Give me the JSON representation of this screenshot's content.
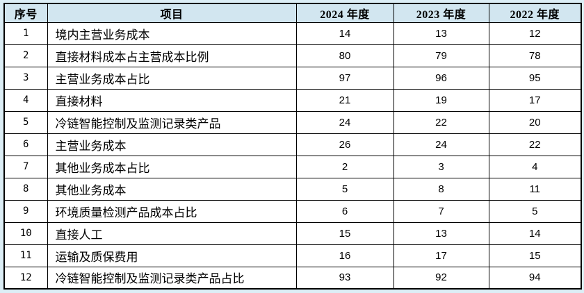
{
  "colors": {
    "page_bg": "#dceef6",
    "header_bg": "#d2e6f0",
    "border": "#000000",
    "row_bg": "#ffffff"
  },
  "table": {
    "columns": [
      {
        "id": "index",
        "label": "序号"
      },
      {
        "id": "item",
        "label": "项目"
      },
      {
        "id": "y2024",
        "label": "2024 年度"
      },
      {
        "id": "y2023",
        "label": "2023 年度"
      },
      {
        "id": "y2022",
        "label": "2022 年度"
      }
    ],
    "rows": [
      {
        "index": "1",
        "item": "境内主营业务成本",
        "y2024": "14",
        "y2023": "13",
        "y2022": "12"
      },
      {
        "index": "2",
        "item": "直接材料成本占主营成本比例",
        "y2024": "80",
        "y2023": "79",
        "y2022": "78"
      },
      {
        "index": "3",
        "item": "主营业务成本占比",
        "y2024": "97",
        "y2023": "96",
        "y2022": "95"
      },
      {
        "index": "4",
        "item": "直接材料",
        "y2024": "21",
        "y2023": "19",
        "y2022": "17"
      },
      {
        "index": "5",
        "item": "冷链智能控制及监测记录类产品",
        "y2024": "24",
        "y2023": "22",
        "y2022": "20"
      },
      {
        "index": "6",
        "item": "主营业务成本",
        "y2024": "26",
        "y2023": "24",
        "y2022": "22"
      },
      {
        "index": "7",
        "item": "其他业务成本占比",
        "y2024": "2",
        "y2023": "3",
        "y2022": "4"
      },
      {
        "index": "8",
        "item": "其他业务成本",
        "y2024": "5",
        "y2023": "8",
        "y2022": "11"
      },
      {
        "index": "9",
        "item": "环境质量检测产品成本占比",
        "y2024": "6",
        "y2023": "7",
        "y2022": "5"
      },
      {
        "index": "10",
        "item": "直接人工",
        "y2024": "15",
        "y2023": "13",
        "y2022": "14"
      },
      {
        "index": "11",
        "item": "运输及质保费用",
        "y2024": "16",
        "y2023": "17",
        "y2022": "15"
      },
      {
        "index": "12",
        "item": "冷链智能控制及监测记录类产品占比",
        "y2024": "93",
        "y2023": "92",
        "y2022": "94"
      }
    ]
  }
}
